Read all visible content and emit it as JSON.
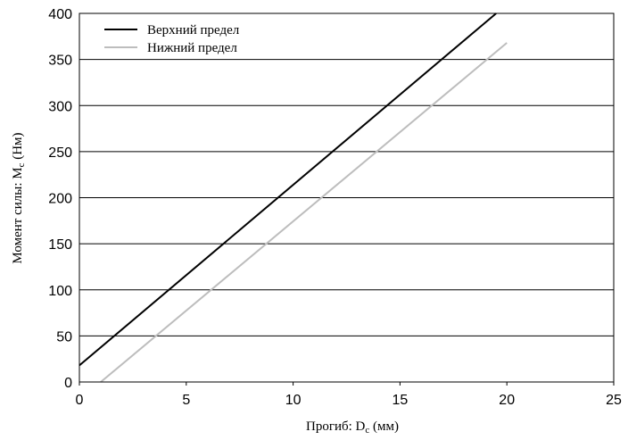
{
  "chart_data": {
    "type": "line",
    "xlabel": "Прогиб: D",
    "xlabel_sub": "c",
    "xlabel_unit": " (мм)",
    "ylabel": "Момент силы: M",
    "ylabel_sub": "c",
    "ylabel_unit": " (Нм)",
    "xlim": [
      0,
      25
    ],
    "ylim": [
      0,
      400
    ],
    "xticks": [
      0,
      5,
      10,
      15,
      20,
      25
    ],
    "yticks": [
      0,
      50,
      100,
      150,
      200,
      250,
      300,
      350,
      400
    ],
    "grid": "horizontal",
    "legend_position": "top-left",
    "series": [
      {
        "name": "Верхний предел",
        "color": "#000000",
        "x": [
          0,
          19.5
        ],
        "y": [
          18,
          400
        ]
      },
      {
        "name": "Нижний предел",
        "color": "#bdbdbd",
        "x": [
          1.0,
          20.0
        ],
        "y": [
          0,
          368
        ]
      }
    ]
  }
}
